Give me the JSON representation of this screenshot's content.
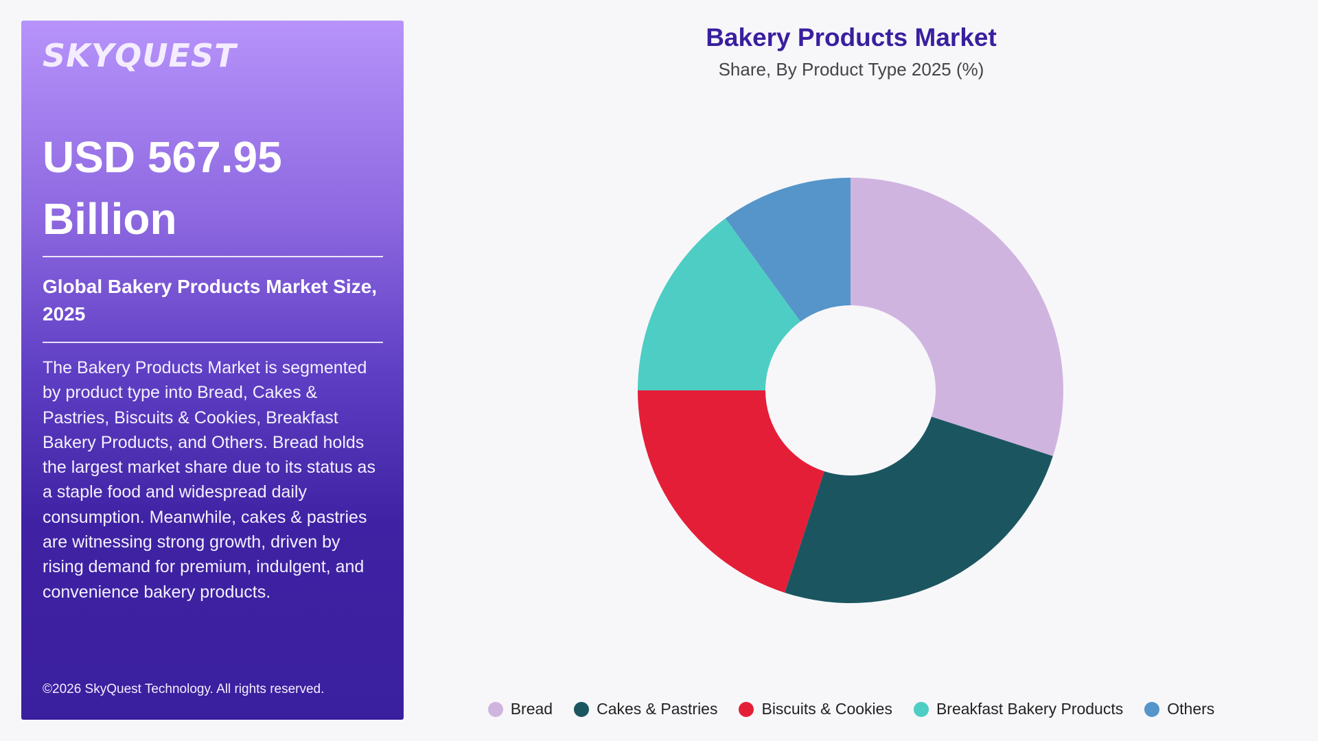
{
  "left_panel": {
    "logo_text": "SKYQUEST",
    "market_value_line1": "USD 567.95",
    "market_value_line2": "Billion",
    "subheading": "Global Bakery Products Market Size, 2025",
    "description": "The Bakery Products Market is segmented by product type into Bread, Cakes & Pastries, Biscuits & Cookies, Breakfast Bakery Products, and Others. Bread holds the largest market share due to its status as a staple food and widespread daily consumption. Meanwhile, cakes & pastries are witnessing strong growth, driven by rising demand for premium, indulgent, and convenience bakery products.",
    "copyright": "©2026 SkyQuest Technology. All rights reserved."
  },
  "chart_data": {
    "type": "pie",
    "donut": true,
    "title": "Bakery Products Market",
    "subtitle": "Share, By Product Type 2025 (%)",
    "legend_position": "bottom",
    "categories": [
      "Bread",
      "Cakes & Pastries",
      "Biscuits & Cookies",
      "Breakfast Bakery Products",
      "Others"
    ],
    "values": [
      30,
      25,
      20,
      15,
      10
    ],
    "colors": [
      "#d0b4e0",
      "#1b5660",
      "#e51e38",
      "#4ecdc4",
      "#5595c9"
    ]
  }
}
